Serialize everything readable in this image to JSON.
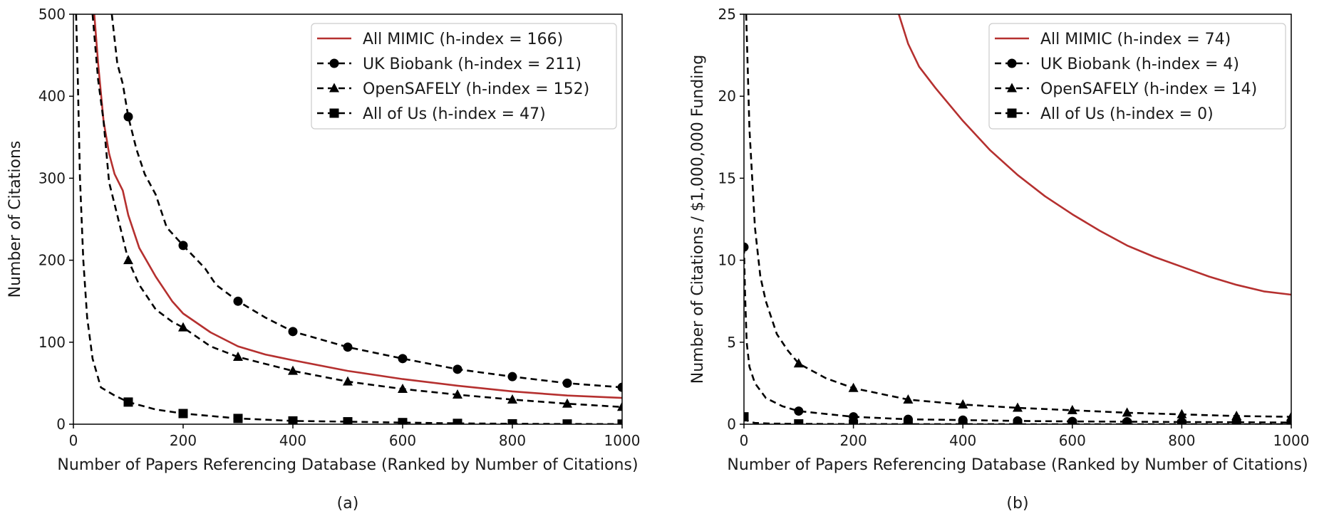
{
  "colors": {
    "mimic": "#b5302f",
    "other": "#000000",
    "axis": "#000000"
  },
  "chart_data": [
    {
      "type": "line",
      "caption": "(a)",
      "xlabel": "Number of Papers Referencing Database (Ranked by Number of Citations)",
      "ylabel": "Number of Citations",
      "xlim": [
        0,
        1000
      ],
      "ylim": [
        0,
        500
      ],
      "xticks": [
        0,
        200,
        400,
        600,
        800,
        1000
      ],
      "yticks": [
        0,
        100,
        200,
        300,
        400,
        500
      ],
      "grid": false,
      "legend_position": "top-right",
      "series": [
        {
          "name": "All MIMIC (h-index = 166)",
          "style": "solid",
          "marker": "none",
          "color": "#b5302f",
          "x": [
            38,
            45,
            55,
            65,
            75,
            90,
            100,
            120,
            150,
            180,
            200,
            250,
            300,
            350,
            400,
            500,
            600,
            700,
            800,
            900,
            1000
          ],
          "y": [
            500,
            440,
            370,
            330,
            305,
            285,
            255,
            215,
            180,
            150,
            135,
            112,
            95,
            85,
            78,
            65,
            55,
            47,
            40,
            35,
            32
          ]
        },
        {
          "name": "UK Biobank (h-index = 211)",
          "style": "dashed",
          "marker": "circle",
          "color": "#000000",
          "x": [
            70,
            80,
            90,
            100,
            115,
            130,
            150,
            170,
            200,
            240,
            260,
            300,
            350,
            400,
            500,
            600,
            700,
            800,
            900,
            1000
          ],
          "y": [
            500,
            440,
            415,
            375,
            335,
            305,
            280,
            240,
            218,
            190,
            170,
            150,
            130,
            113,
            94,
            80,
            67,
            58,
            50,
            45
          ]
        },
        {
          "name": "OpenSAFELY (h-index = 152)",
          "style": "dashed",
          "marker": "triangle",
          "color": "#000000",
          "x": [
            35,
            45,
            55,
            65,
            80,
            100,
            120,
            150,
            180,
            200,
            250,
            300,
            400,
            500,
            600,
            700,
            800,
            900,
            1000
          ],
          "y": [
            500,
            420,
            370,
            295,
            255,
            200,
            170,
            140,
            125,
            118,
            95,
            82,
            65,
            52,
            43,
            36,
            30,
            25,
            21
          ]
        },
        {
          "name": "All of Us (h-index = 47)",
          "style": "dashed",
          "marker": "square",
          "color": "#000000",
          "x": [
            5,
            8,
            12,
            18,
            25,
            35,
            50,
            75,
            100,
            150,
            200,
            300,
            400,
            500,
            600,
            700,
            800,
            900,
            1000
          ],
          "y": [
            500,
            420,
            300,
            200,
            130,
            80,
            45,
            35,
            27,
            18,
            13,
            7,
            4,
            3,
            2,
            1,
            0.5,
            0.3,
            0.2
          ]
        }
      ]
    },
    {
      "type": "line",
      "caption": "(b)",
      "xlabel": "Number of Papers Referencing Database (Ranked by Number of Citations)",
      "ylabel": "Number of Citations / $1,000,000 Funding",
      "xlim": [
        0,
        1000
      ],
      "ylim": [
        0,
        25
      ],
      "xticks": [
        0,
        200,
        400,
        600,
        800,
        1000
      ],
      "yticks": [
        0,
        5,
        10,
        15,
        20,
        25
      ],
      "grid": false,
      "legend_position": "top-right",
      "series": [
        {
          "name": "All MIMIC (h-index = 74)",
          "style": "solid",
          "marker": "none",
          "color": "#b5302f",
          "x": [
            283,
            300,
            320,
            350,
            400,
            450,
            500,
            550,
            600,
            650,
            700,
            750,
            800,
            850,
            900,
            950,
            1000
          ],
          "y": [
            25,
            23.2,
            21.8,
            20.5,
            18.5,
            16.7,
            15.2,
            13.9,
            12.8,
            11.8,
            10.9,
            10.2,
            9.6,
            9.0,
            8.5,
            8.1,
            7.9
          ]
        },
        {
          "name": "UK Biobank (h-index = 4)",
          "style": "dashed",
          "marker": "circle",
          "color": "#000000",
          "x": [
            0,
            2,
            5,
            10,
            20,
            40,
            70,
            100,
            200,
            300,
            400,
            500,
            600,
            700,
            800,
            900,
            1000
          ],
          "y": [
            10.8,
            8,
            5,
            3.5,
            2.5,
            1.6,
            1.1,
            0.8,
            0.45,
            0.3,
            0.25,
            0.2,
            0.17,
            0.15,
            0.13,
            0.12,
            0.1
          ]
        },
        {
          "name": "OpenSAFELY (h-index = 14)",
          "style": "dashed",
          "marker": "triangle",
          "color": "#000000",
          "x": [
            4,
            10,
            20,
            30,
            40,
            60,
            80,
            100,
            150,
            200,
            300,
            400,
            500,
            600,
            700,
            800,
            900,
            1000
          ],
          "y": [
            25,
            18,
            12,
            9,
            7.5,
            5.5,
            4.5,
            3.7,
            2.8,
            2.2,
            1.5,
            1.2,
            1.0,
            0.85,
            0.7,
            0.6,
            0.5,
            0.45
          ]
        },
        {
          "name": "All of Us (h-index = 0)",
          "style": "dashed",
          "marker": "square",
          "color": "#000000",
          "x": [
            0,
            5,
            10,
            20,
            50,
            100,
            200,
            300,
            400,
            500,
            600,
            700,
            800,
            900,
            1000
          ],
          "y": [
            0.45,
            0.25,
            0.15,
            0.08,
            0.04,
            0.02,
            0.01,
            0.005,
            0.003,
            0.002,
            0.001,
            0.001,
            0.001,
            0.001,
            0.001
          ]
        }
      ]
    }
  ]
}
